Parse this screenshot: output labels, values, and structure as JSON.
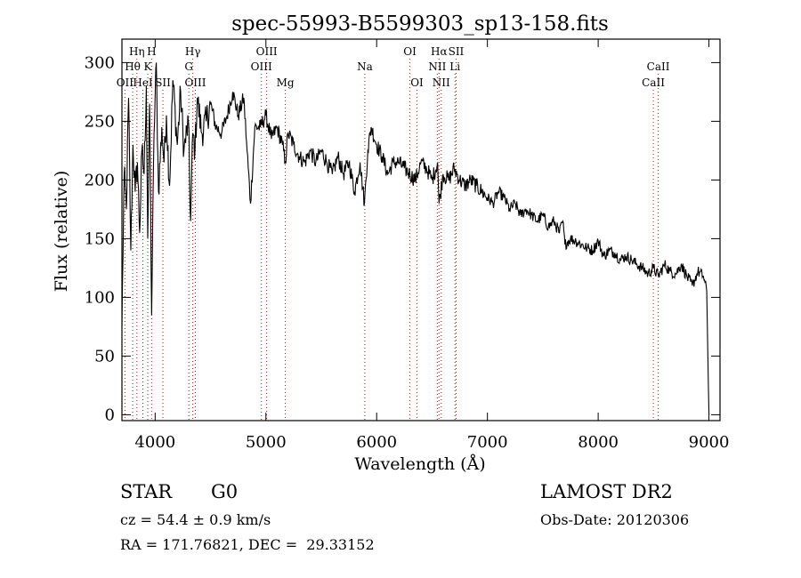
{
  "chart_data": {
    "type": "line",
    "title": "spec-55993-B5599303_sp13-158.fits",
    "xlabel": "Wavelength (Å)",
    "ylabel": "Flux (relative)",
    "xlim": [
      3700,
      9100
    ],
    "ylim": [
      -5,
      320
    ],
    "xticks": [
      4000,
      5000,
      6000,
      7000,
      8000,
      9000
    ],
    "yticks": [
      0,
      50,
      100,
      150,
      200,
      250,
      300
    ],
    "grid": false,
    "line_color": "#000000",
    "marker_color": "#cc0000",
    "spectrum": {
      "name": "flux",
      "x": [
        3700,
        3720,
        3740,
        3760,
        3780,
        3800,
        3820,
        3840,
        3860,
        3880,
        3900,
        3920,
        3933,
        3950,
        3968,
        3990,
        4010,
        4030,
        4060,
        4080,
        4102,
        4130,
        4160,
        4200,
        4230,
        4260,
        4300,
        4320,
        4340,
        4360,
        4380,
        4420,
        4460,
        4500,
        4550,
        4600,
        4650,
        4700,
        4750,
        4800,
        4830,
        4861,
        4900,
        4950,
        5000,
        5050,
        5100,
        5150,
        5175,
        5200,
        5250,
        5300,
        5350,
        5400,
        5450,
        5500,
        5550,
        5600,
        5650,
        5700,
        5750,
        5800,
        5850,
        5890,
        5920,
        5950,
        6000,
        6050,
        6100,
        6150,
        6200,
        6250,
        6300,
        6350,
        6400,
        6450,
        6500,
        6550,
        6563,
        6600,
        6650,
        6700,
        6750,
        6800,
        6850,
        6900,
        6950,
        7000,
        7050,
        7100,
        7150,
        7200,
        7250,
        7300,
        7350,
        7400,
        7450,
        7500,
        7550,
        7600,
        7650,
        7680,
        7700,
        7750,
        7800,
        7850,
        7900,
        7950,
        8000,
        8050,
        8100,
        8150,
        8200,
        8250,
        8300,
        8350,
        8400,
        8450,
        8500,
        8542,
        8600,
        8650,
        8700,
        8750,
        8800,
        8850,
        8900,
        8950,
        8980,
        9000
      ],
      "y": [
        75,
        205,
        175,
        270,
        140,
        230,
        190,
        215,
        155,
        225,
        205,
        280,
        150,
        265,
        85,
        240,
        300,
        190,
        245,
        215,
        255,
        195,
        285,
        230,
        275,
        225,
        250,
        165,
        240,
        225,
        270,
        240,
        250,
        265,
        245,
        240,
        255,
        275,
        255,
        270,
        225,
        180,
        245,
        245,
        255,
        235,
        245,
        230,
        215,
        240,
        230,
        220,
        215,
        225,
        215,
        225,
        215,
        205,
        220,
        205,
        215,
        190,
        215,
        180,
        225,
        245,
        230,
        220,
        205,
        215,
        215,
        210,
        205,
        200,
        215,
        210,
        200,
        215,
        180,
        205,
        200,
        210,
        200,
        195,
        200,
        195,
        190,
        185,
        180,
        190,
        185,
        175,
        180,
        170,
        175,
        170,
        165,
        170,
        160,
        165,
        155,
        165,
        145,
        150,
        148,
        145,
        142,
        140,
        148,
        135,
        140,
        138,
        132,
        135,
        132,
        128,
        125,
        120,
        125,
        118,
        128,
        122,
        120,
        128,
        118,
        110,
        122,
        118,
        105,
        0
      ]
    },
    "line_markers": [
      {
        "label": "Hη",
        "x": 3835,
        "row": 1
      },
      {
        "label": "H",
        "x": 3968,
        "row": 1
      },
      {
        "label": "Hγ",
        "x": 4340,
        "row": 1
      },
      {
        "label": "OIII",
        "x": 5007,
        "row": 1
      },
      {
        "label": "OI",
        "x": 6300,
        "row": 1
      },
      {
        "label": "Hα",
        "x": 6563,
        "row": 1
      },
      {
        "label": "SII",
        "x": 6717,
        "row": 1
      },
      {
        "label": "Hθ",
        "x": 3797,
        "row": 2
      },
      {
        "label": "K",
        "x": 3933,
        "row": 2
      },
      {
        "label": "G",
        "x": 4304,
        "row": 2
      },
      {
        "label": "OIII",
        "x": 4959,
        "row": 2
      },
      {
        "label": "Na",
        "x": 5893,
        "row": 2
      },
      {
        "label": "NII",
        "x": 6548,
        "row": 2
      },
      {
        "label": "Li",
        "x": 6707,
        "row": 2
      },
      {
        "label": "CaII",
        "x": 8542,
        "row": 2
      },
      {
        "label": "OII",
        "x": 3727,
        "row": 3
      },
      {
        "label": "HeI",
        "x": 3889,
        "row": 3
      },
      {
        "label": "SII",
        "x": 4070,
        "row": 3
      },
      {
        "label": "OIII",
        "x": 4363,
        "row": 3
      },
      {
        "label": "Mg",
        "x": 5175,
        "row": 3
      },
      {
        "label": "OI",
        "x": 6364,
        "row": 3
      },
      {
        "label": "NII",
        "x": 6583,
        "row": 3
      },
      {
        "label": "CaII",
        "x": 8498,
        "row": 3
      }
    ]
  },
  "info": {
    "object_class": "STAR",
    "subclass": "G0",
    "survey": "LAMOST DR2",
    "redshift": "cz = 54.4 ± 0.9 km/s",
    "obs_date": "Obs-Date: 20120306",
    "coords": "RA = 171.76821, DEC =  29.33152"
  }
}
